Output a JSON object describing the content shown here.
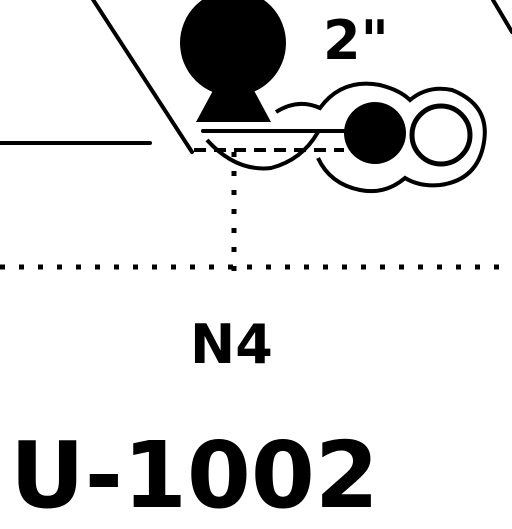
{
  "colors": {
    "line": "#000000",
    "background": "#ffffff"
  },
  "labels": {
    "fixture_number": "2\"",
    "node": "N4",
    "identifier": "U-1002"
  },
  "icons": {
    "left_fixture": "fixture-bulb-symbol",
    "right_fixture": "fixture-paired-circles-symbol"
  }
}
